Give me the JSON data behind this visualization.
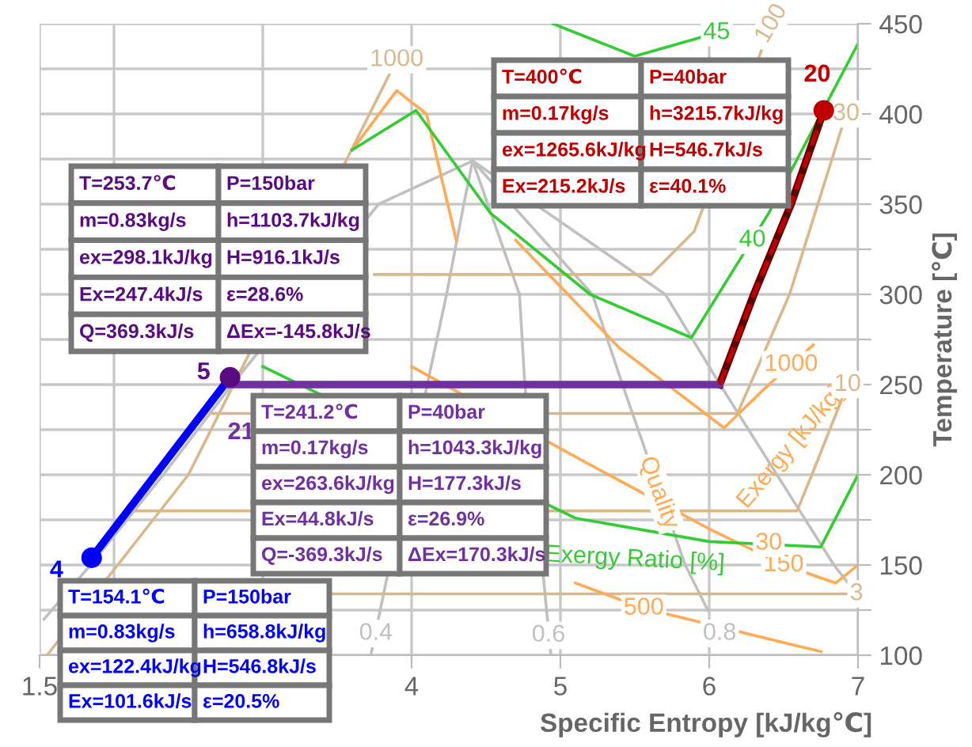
{
  "chart_data": {
    "type": "line",
    "xlabel": "Specific Entropy [kJ/kg℃]",
    "ylabel": "Temperature [℃]",
    "xlim": [
      1.5,
      7
    ],
    "ylim": [
      100,
      450
    ],
    "xticks": [
      1.5,
      {
        "value": 2,
        "label": null
      },
      {
        "value": 3,
        "label": null
      },
      4,
      5,
      6,
      7
    ],
    "yticks": [
      100,
      {
        "value": 125,
        "label": null
      },
      150,
      {
        "value": 175,
        "label": null
      },
      200,
      {
        "value": 225,
        "label": null
      },
      250,
      {
        "value": 275,
        "label": null
      },
      300,
      {
        "value": 325,
        "label": null
      },
      350,
      {
        "value": 375,
        "label": null
      },
      400,
      {
        "value": 425,
        "label": null
      },
      450
    ],
    "grid": true,
    "series": [
      {
        "type": "scatter",
        "color": "#0000ff",
        "x": [
          1.85
        ],
        "values": [
          154
        ],
        "marker": "circle"
      },
      {
        "type": "scatter",
        "color": "#5a0a82",
        "x": [
          2.78
        ],
        "values": [
          254
        ],
        "marker": "circle"
      },
      {
        "type": "scatter",
        "color": "#c00000",
        "x": [
          6.77
        ],
        "values": [
          402
        ],
        "marker": "circle"
      },
      {
        "color": "#c0c0c0",
        "x": [
          1.53,
          1.842,
          2.331,
          2.793,
          3.778,
          4.41,
          5.705,
          6.073,
          6.838,
          7.0
        ],
        "values": [
          120,
          150,
          200,
          250,
          350,
          374,
          300,
          250,
          150,
          133
        ]
      },
      {
        "color": "#c0c0c0",
        "x": [
          4.41,
          4.351,
          4.235,
          4.105,
          3.726
        ],
        "values": [
          374,
          350,
          300,
          250,
          100
        ]
      },
      {
        "color": "#c0c0c0",
        "x": [
          4.41,
          4.725,
          4.761,
          4.936
        ],
        "values": [
          374,
          300,
          250,
          100
        ]
      },
      {
        "color": "#c0c0c0",
        "x": [
          4.41,
          5.215,
          5.417,
          5.839,
          5.99
        ],
        "values": [
          374,
          300,
          250,
          150,
          125
        ]
      },
      {
        "color": "#d9b98c",
        "x": [
          3.45,
          6.99
        ],
        "values": [
          134,
          134
        ]
      },
      {
        "color": "#d9b98c",
        "x": [
          2.14,
          6.59,
          6.69,
          6.93
        ],
        "values": [
          180,
          180,
          200,
          250
        ]
      },
      {
        "color": "#d9b98c",
        "x": [
          2.65,
          6.19,
          6.54,
          6.92
        ],
        "values": [
          234,
          234,
          300,
          400
        ]
      },
      {
        "color": "#d9b98c",
        "x": [
          3.75,
          5.61,
          5.9,
          6.35
        ],
        "values": [
          311,
          311,
          335,
          435
        ]
      },
      {
        "color": "#d9b98c",
        "x": [
          1.55,
          2.5,
          3.9
        ],
        "values": [
          100,
          200,
          430
        ]
      },
      {
        "color": "#ffaa55",
        "x": [
          5.1,
          5.56,
          6.75
        ],
        "values": [
          140,
          126,
          102
        ]
      },
      {
        "color": "#ffaa55",
        "x": [
          4.7,
          5.4,
          6.1,
          6.4,
          6.7
        ],
        "values": [
          330,
          270,
          226,
          250,
          272
        ]
      },
      {
        "color": "#ffaa55",
        "x": [
          4.0,
          5.1,
          6.0,
          6.5,
          6.85,
          7.0
        ],
        "values": [
          260,
          210,
          170,
          150,
          140,
          150
        ]
      },
      {
        "color": "#ffaa55",
        "x": [
          3.6,
          3.9,
          4.1,
          4.3
        ],
        "values": [
          380,
          413,
          400,
          330
        ]
      },
      {
        "color": "#33cc33",
        "x": [
          3.0,
          5.1,
          6.0,
          6.75,
          7.0
        ],
        "values": [
          260,
          176,
          163,
          160,
          200
        ]
      },
      {
        "color": "#33cc33",
        "x": [
          3.6,
          4.03,
          4.53,
          5.2,
          5.88,
          6.4,
          7.0
        ],
        "values": [
          380,
          402,
          345,
          300,
          276,
          345,
          439
        ]
      },
      {
        "color": "#33cc33",
        "x": [
          4.95,
          5.5,
          6.05
        ],
        "values": [
          450,
          432,
          445
        ]
      },
      {
        "color": "#0000ff",
        "x": [
          1.85,
          2.78
        ],
        "values": [
          154,
          254
        ],
        "line_style": "solid"
      },
      {
        "color": "#7030a0",
        "x": [
          2.78,
          6.07
        ],
        "values": [
          250,
          250
        ],
        "line_style": "solid"
      },
      {
        "color": "#c00000",
        "x": [
          6.07,
          6.3,
          6.55,
          6.77
        ],
        "values": [
          250,
          300,
          350,
          402
        ],
        "line_style": "dashed"
      }
    ],
    "annotations": [
      "T=253.7℃",
      "P=150bar",
      "m=0.83kg/s",
      "h=1103.7kJ/kg",
      "ex=298.1kJ/kg",
      "H=916.1kJ/s",
      "Ex=247.4kJ/s",
      "ε=28.6%",
      "Q=369.3kJ/s",
      "ΔEx=-145.8kJ/s",
      "T=400℃",
      "P=40bar",
      "m=0.17kg/s",
      "h=3215.7kJ/kg",
      "ex=1265.6kJ/kg",
      "H=546.7kJ/s",
      "Ex=215.2kJ/s",
      "ε=40.1%",
      "T=241.2℃",
      "P=40bar",
      "m=0.17kg/s",
      "h=1043.3kJ/kg",
      "ex=263.6kJ/kg",
      "H=177.3kJ/s",
      "Ex=44.8kJ/s",
      "ε=26.9%",
      "Q=-369.3kJ/s",
      "ΔEx=170.3kJ/s",
      "T=154.1℃",
      "P=150bar",
      "m=0.83kg/s",
      "h=658.8kJ/kg",
      "ex=122.4kJ/kg",
      "H=546.8kJ/s",
      "Ex=101.6kJ/s",
      "ε=20.5%",
      "Exergy [kJ/kg]",
      {
        "text": "4",
        "x": 1.85,
        "y": 154
      },
      {
        "text": "5",
        "x": 2.78,
        "y": 254
      },
      {
        "text": "20",
        "x": 6.77,
        "y": 402
      },
      {
        "text": "21",
        "x": 2.78,
        "y": 250
      },
      {
        "text": "0.4",
        "x": 3.76,
        "y": 112
      },
      {
        "text": "0.6",
        "x": 4.92,
        "y": 111
      },
      {
        "text": "0.8",
        "x": 6.07,
        "y": 112
      },
      {
        "text": "Quality",
        "x": 5.66,
        "y": 190
      },
      {
        "text": "500",
        "x": 5.56,
        "y": 126
      },
      {
        "text": "1000",
        "x": 6.55,
        "y": 261
      },
      {
        "text": "150",
        "x": 6.5,
        "y": 150
      },
      {
        "text": "3",
        "x": 6.99,
        "y": 134
      },
      {
        "text": "10",
        "x": 6.93,
        "y": 250
      },
      {
        "text": "30",
        "x": 6.92,
        "y": 400
      },
      {
        "text": "100",
        "x": 6.42,
        "y": 450
      },
      {
        "text": "1000",
        "x": 3.9,
        "y": 430
      },
      {
        "text": "30",
        "x": 6.4,
        "y": 162
      },
      {
        "text": "Exergy Ratio [%]",
        "x": 5.5,
        "y": 170
      },
      {
        "text": "40",
        "x": 6.29,
        "y": 330
      },
      {
        "text": "45",
        "x": 6.05,
        "y": 445
      }
    ]
  }
}
